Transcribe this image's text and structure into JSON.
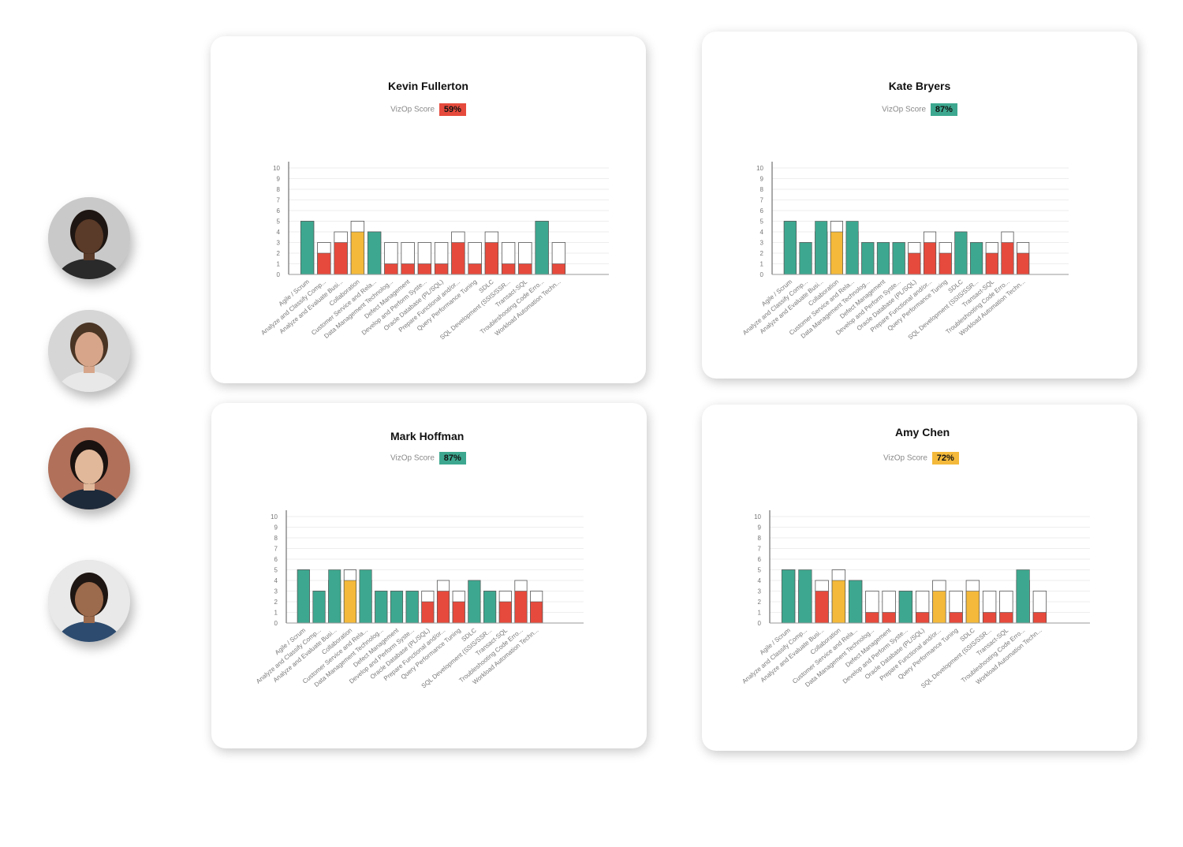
{
  "colors": {
    "green": "#3da88f",
    "red": "#e64a3c",
    "yellow": "#f4b93a",
    "outline": "#555555",
    "axis": "#555555",
    "grid": "#eeeeee",
    "tick_text": "#777777"
  },
  "avatars": [
    {
      "name": "avatar-woman-braids",
      "skin": "#5a3a28",
      "hair": "#1e1612",
      "bg": "#c9c9c9",
      "shirt": "#2a2a2a"
    },
    {
      "name": "avatar-man-glasses",
      "skin": "#d7a68a",
      "hair": "#4a3424",
      "bg": "#d6d6d6",
      "shirt": "#e8e8e8"
    },
    {
      "name": "avatar-woman-dark-hair",
      "skin": "#e2b89a",
      "hair": "#1a1210",
      "bg": "#b0705a",
      "shirt": "#1d2a3a"
    },
    {
      "name": "avatar-man-denim",
      "skin": "#9c6a4c",
      "hair": "#1e1612",
      "bg": "#e9e9e9",
      "shirt": "#2d4b6e"
    }
  ],
  "cards": [
    {
      "name": "Kevin Fullerton",
      "score_label": "VizOp Score",
      "score_value": "59%",
      "score_color": "#e64a3c",
      "chart_data": {
        "type": "bar",
        "title": "",
        "ylim": [
          0,
          10
        ],
        "yticks": [
          "0",
          "1",
          "2",
          "3",
          "4",
          "5",
          "6",
          "7",
          "8",
          "9",
          "10"
        ],
        "categories": [
          "Agile / Scrum",
          "Analyze and Classify Comp...",
          "Analyze and Evaluate Busi...",
          "Collaboration",
          "Customer Service and Rela...",
          "Data Management Technolog...",
          "Defect Management",
          "Develop and Perform Syste...",
          "Oracle Database (PL/SQL)",
          "Prepare Functional and/or...",
          "Query Performance Tuning",
          "SDLC",
          "SQL Development (SSIS/SSR...",
          "Transact-SQL",
          "Troubleshooting Code Erro...",
          "Workload Automation Techn..."
        ],
        "series": [
          {
            "values": [
              5,
              2,
              3,
              4,
              4,
              1,
              1,
              1,
              1,
              3,
              1,
              3,
              1,
              1,
              5,
              1
            ],
            "colors": [
              "green",
              "red",
              "red",
              "yellow",
              "green",
              "red",
              "red",
              "red",
              "red",
              "red",
              "red",
              "red",
              "red",
              "red",
              "green",
              "red"
            ]
          },
          {
            "values": [
              5,
              3,
              4,
              5,
              4,
              3,
              3,
              3,
              3,
              4,
              3,
              4,
              3,
              3,
              5,
              3
            ]
          }
        ]
      }
    },
    {
      "name": "Kate Bryers",
      "score_label": "VizOp Score",
      "score_value": "87%",
      "score_color": "#3da88f",
      "chart_data": {
        "type": "bar",
        "title": "",
        "ylim": [
          0,
          10
        ],
        "yticks": [
          "0",
          "1",
          "2",
          "3",
          "4",
          "5",
          "6",
          "7",
          "8",
          "9",
          "10"
        ],
        "categories": [
          "Agile / Scrum",
          "Analyze and Classify Comp...",
          "Analyze and Evaluate Busi...",
          "Collaboration",
          "Customer Service and Rela...",
          "Data Management Technolog...",
          "Defect Management",
          "Develop and Perform Syste...",
          "Oracle Database (PL/SQL)",
          "Prepare Functional and/or...",
          "Query Performance Tuning",
          "SDLC",
          "SQL Development (SSIS/SSR...",
          "Transact-SQL",
          "Troubleshooting Code Erro...",
          "Workload Automation Techn..."
        ],
        "series": [
          {
            "values": [
              5,
              3,
              5,
              4,
              5,
              3,
              3,
              3,
              2,
              3,
              2,
              4,
              3,
              2,
              3,
              2
            ],
            "colors": [
              "green",
              "green",
              "green",
              "yellow",
              "green",
              "green",
              "green",
              "green",
              "red",
              "red",
              "red",
              "green",
              "green",
              "red",
              "red",
              "red"
            ]
          },
          {
            "values": [
              5,
              3,
              4,
              5,
              4,
              3,
              3,
              3,
              3,
              4,
              3,
              4,
              3,
              3,
              4,
              3
            ]
          }
        ]
      }
    },
    {
      "name": "Mark Hoffman",
      "score_label": "VizOp Score",
      "score_value": "87%",
      "score_color": "#3da88f",
      "chart_data": {
        "type": "bar",
        "title": "",
        "ylim": [
          0,
          10
        ],
        "yticks": [
          "0",
          "1",
          "2",
          "3",
          "4",
          "5",
          "6",
          "7",
          "8",
          "9",
          "10"
        ],
        "categories": [
          "Agile / Scrum",
          "Analyze and Classify Comp...",
          "Analyze and Evaluate Busi...",
          "Collaboration",
          "Customer Service and Rela...",
          "Data Management Technolog...",
          "Defect Management",
          "Develop and Perform Syste...",
          "Oracle Database (PL/SQL)",
          "Prepare Functional and/or...",
          "Query Performance Tuning",
          "SDLC",
          "SQL Development (SSIS/SSR...",
          "Transact-SQL",
          "Troubleshooting Code Erro...",
          "Workload Automation Techn..."
        ],
        "series": [
          {
            "values": [
              5,
              3,
              5,
              4,
              5,
              3,
              3,
              3,
              2,
              3,
              2,
              4,
              3,
              2,
              3,
              2
            ],
            "colors": [
              "green",
              "green",
              "green",
              "yellow",
              "green",
              "green",
              "green",
              "green",
              "red",
              "red",
              "red",
              "green",
              "green",
              "red",
              "red",
              "red"
            ]
          },
          {
            "values": [
              5,
              3,
              4,
              5,
              4,
              3,
              3,
              3,
              3,
              4,
              3,
              4,
              3,
              3,
              4,
              3
            ]
          }
        ]
      }
    },
    {
      "name": "Amy Chen",
      "score_label": "VizOp Score",
      "score_value": "72%",
      "score_color": "#f4b93a",
      "chart_data": {
        "type": "bar",
        "title": "",
        "ylim": [
          0,
          10
        ],
        "yticks": [
          "0",
          "1",
          "2",
          "3",
          "4",
          "5",
          "6",
          "7",
          "8",
          "9",
          "10"
        ],
        "categories": [
          "Agile / Scrum",
          "Analyze and Classify Comp...",
          "Analyze and Evaluate Busi...",
          "Collaboration",
          "Customer Service and Rela...",
          "Data Management Technolog...",
          "Defect Management",
          "Develop and Perform Syste...",
          "Oracle Database (PL/SQL)",
          "Prepare Functional and/or...",
          "Query Performance Tuning",
          "SDLC",
          "SQL Development (SSIS/SSR...",
          "Transact-SQL",
          "Troubleshooting Code Erro...",
          "Workload Automation Techn..."
        ],
        "series": [
          {
            "values": [
              5,
              5,
              3,
              4,
              4,
              1,
              1,
              3,
              1,
              3,
              1,
              3,
              1,
              1,
              5,
              1
            ],
            "colors": [
              "green",
              "green",
              "red",
              "yellow",
              "green",
              "red",
              "red",
              "green",
              "red",
              "yellow",
              "red",
              "yellow",
              "red",
              "red",
              "green",
              "red"
            ]
          },
          {
            "values": [
              5,
              4,
              4,
              5,
              4,
              3,
              3,
              3,
              3,
              4,
              3,
              4,
              3,
              3,
              4,
              3
            ]
          }
        ]
      }
    }
  ]
}
